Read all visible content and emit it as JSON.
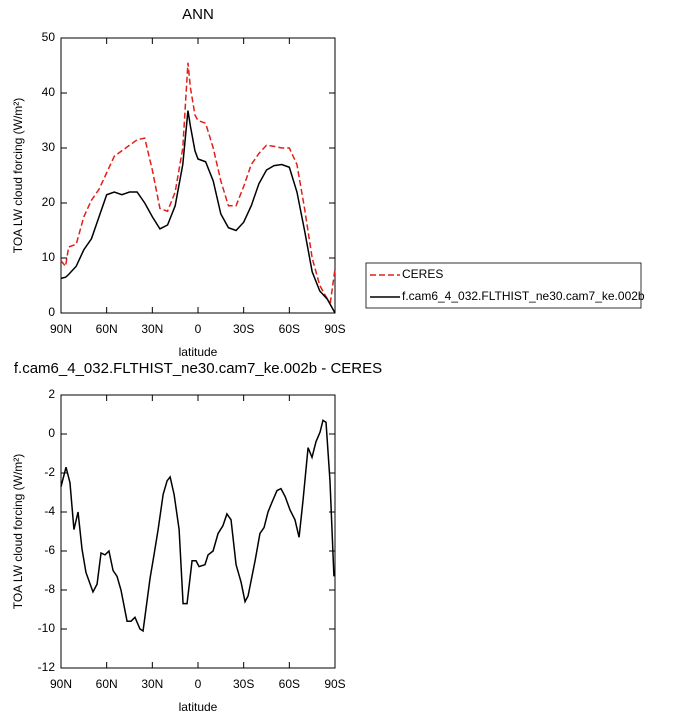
{
  "chart_data": [
    {
      "type": "line",
      "title": "ANN",
      "xlabel": "latitude",
      "ylabel": "TOA LW cloud forcing (W/m²)",
      "x": [
        90,
        87,
        85,
        80,
        75,
        70,
        65,
        60,
        55,
        50,
        45,
        40,
        35,
        30,
        25,
        20,
        15,
        10,
        6.6,
        5,
        2,
        0,
        -5,
        -10,
        -15,
        -20,
        -25,
        -30,
        -35,
        -40,
        -45,
        -50,
        -55,
        -60,
        -65,
        -70,
        -75,
        -80,
        -85,
        -87,
        -90
      ],
      "series": [
        {
          "name": "CERES",
          "color": "#e0201b",
          "linestyle": "dashed",
          "values": [
            9.5,
            8.5,
            12,
            12.5,
            17.5,
            20.5,
            22.5,
            25.5,
            28.5,
            29.5,
            30.5,
            31.5,
            31.8,
            26,
            19,
            18.5,
            22,
            30,
            45.5,
            41,
            36,
            35,
            34.5,
            30,
            24,
            19.5,
            19.5,
            23,
            27,
            29,
            30.5,
            30.3,
            30,
            30,
            27,
            19,
            10,
            5,
            2.5,
            2,
            8
          ]
        },
        {
          "name": "f.cam6_4_032.FLTHIST_ne30.cam7_ke.002b",
          "color": "#000000",
          "linestyle": "solid",
          "values": [
            6.3,
            6.5,
            7,
            8.5,
            11.5,
            13.5,
            17.5,
            21.5,
            22,
            21.5,
            22,
            22,
            20,
            17.5,
            15.3,
            16,
            19.5,
            27,
            36.8,
            34,
            29.5,
            28,
            27.5,
            24,
            18,
            15.5,
            15,
            16.5,
            19.5,
            23.5,
            26,
            26.8,
            27,
            26.5,
            22,
            15,
            7.5,
            4,
            2.5,
            1.5,
            0
          ]
        }
      ],
      "xlim": [
        90,
        -90
      ],
      "xticks": [
        {
          "value": 90,
          "label": "90N"
        },
        {
          "value": 60,
          "label": "60N"
        },
        {
          "value": 30,
          "label": "30N"
        },
        0,
        {
          "value": -30,
          "label": "30S"
        },
        {
          "value": -60,
          "label": "60S"
        },
        {
          "value": -90,
          "label": "90S"
        }
      ],
      "ylim": [
        0,
        50
      ],
      "yticks": [
        0,
        10,
        20,
        30,
        40,
        50
      ],
      "legend": "right"
    },
    {
      "type": "line",
      "title": "f.cam6_4_032.FLTHIST_ne30.cam7_ke.002b - CERES",
      "xlabel": "latitude",
      "ylabel": "TOA LW cloud forcing (W/m²)",
      "x": [
        90,
        86.7,
        84.1,
        81.5,
        78.8,
        76.2,
        73.6,
        69,
        66.3,
        63.7,
        61.1,
        58.5,
        55.8,
        53.2,
        50.6,
        46.6,
        44,
        41.4,
        38.1,
        36.1,
        31.5,
        28.9,
        26.2,
        22.9,
        20.3,
        18.3,
        15.7,
        12.4,
        9.8,
        7.2,
        3.9,
        1.3,
        -0.7,
        -4.6,
        -6.6,
        -9.9,
        -13.2,
        -16.4,
        -19,
        -21.7,
        -25,
        -28.3,
        -30.9,
        -32.9,
        -37.5,
        -40.7,
        -43.4,
        -46,
        -48.6,
        -51.9,
        -54.5,
        -57.2,
        -60.5,
        -63.7,
        -66.4,
        -69,
        -72.3,
        -74.9,
        -77.5,
        -80.2,
        -82.1,
        -84.1,
        -86.7,
        -89.3
      ],
      "series": [
        {
          "color": "#000000",
          "linestyle": "solid",
          "values": [
            -2.7,
            -1.7,
            -2.5,
            -4.9,
            -4,
            -5.9,
            -7.1,
            -8.1,
            -7.7,
            -6.1,
            -6.2,
            -6,
            -7,
            -7.3,
            -8,
            -9.6,
            -9.6,
            -9.4,
            -10,
            -10.1,
            -7.4,
            -6.2,
            -4.9,
            -3.1,
            -2.4,
            -2.2,
            -3.1,
            -4.9,
            -8.7,
            -8.7,
            -6.5,
            -6.5,
            -6.8,
            -6.7,
            -6.2,
            -6,
            -5.1,
            -4.7,
            -4.1,
            -4.4,
            -6.7,
            -7.6,
            -8.6,
            -8.3,
            -6.5,
            -5.1,
            -4.8,
            -4,
            -3.5,
            -2.9,
            -2.8,
            -3.2,
            -3.9,
            -4.4,
            -5.3,
            -3.4,
            -0.7,
            -1.2,
            -0.4,
            0.1,
            0.7,
            0.6,
            -2.4,
            -7.3
          ]
        }
      ],
      "xlim": [
        90,
        -90
      ],
      "xticks": [
        {
          "value": 90,
          "label": "90N"
        },
        {
          "value": 60,
          "label": "60N"
        },
        {
          "value": 30,
          "label": "30N"
        },
        0,
        {
          "value": -30,
          "label": "30S"
        },
        {
          "value": -60,
          "label": "60S"
        },
        {
          "value": -90,
          "label": "90S"
        }
      ],
      "ylim": [
        -12,
        2
      ],
      "yticks": [
        -12,
        -10,
        -8,
        -6,
        -4,
        -2,
        0,
        2
      ]
    }
  ]
}
